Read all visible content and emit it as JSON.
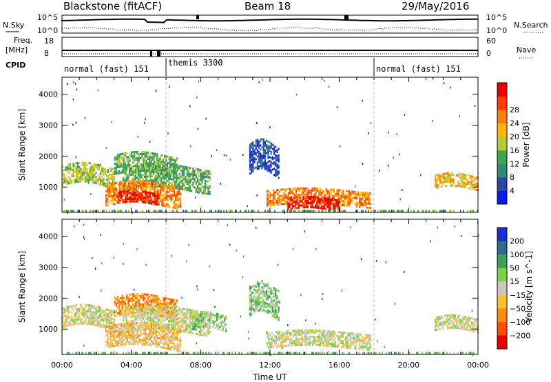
{
  "header": {
    "station": "Blackstone (fitACF)",
    "beam": "Beam 18",
    "date": "29/May/2016"
  },
  "top_panels": {
    "nsky_label": "N.Sky",
    "nsearch_label": "N.Search",
    "nsky_ticks": [
      "10^5",
      "10^0"
    ],
    "nsearch_ticks": [
      "10^5",
      "10^0"
    ],
    "freq_label_1": "Freq.",
    "freq_label_2": "[MHz]",
    "freq_ticks": [
      "18",
      "8"
    ],
    "nave_label": "Nave",
    "nave_ticks": [
      "60",
      "0"
    ],
    "cpid_label": "CPID",
    "cpid_segments": [
      {
        "label": "normal (fast) 151",
        "start_hour": 0,
        "end_hour": 6
      },
      {
        "label": "themis 3300",
        "start_hour": 6,
        "end_hour": 18
      },
      {
        "label": "normal (fast) 151",
        "start_hour": 18,
        "end_hour": 24
      }
    ]
  },
  "chart_data": [
    {
      "type": "heatmap",
      "name": "power",
      "ylabel": "Slant Range [km]",
      "xlabel": "Time UT",
      "xlim": [
        0,
        24
      ],
      "ylim": [
        180,
        4550
      ],
      "y_ticks": [
        1000,
        2000,
        3000,
        4000
      ],
      "x_tick_labels": [
        "00:00",
        "04:00",
        "08:00",
        "12:00",
        "16:00",
        "20:00",
        "00:00"
      ],
      "colorbar": {
        "label": "Power [dB]",
        "ticks": [
          "4",
          "8",
          "12",
          "16",
          "20",
          "24",
          "28"
        ],
        "colors": [
          "#0a1be8",
          "#2a47a8",
          "#33887a",
          "#3aa84a",
          "#b8c83a",
          "#ffb400",
          "#ff8000",
          "#ff4000",
          "#e80000"
        ]
      },
      "echo_regions": [
        {
          "t0": 0.0,
          "t1": 3.0,
          "r0": 1050,
          "r1": 1700,
          "level": 4
        },
        {
          "t0": 3.0,
          "t1": 6.6,
          "r0": 1400,
          "r1": 2050,
          "level": 3
        },
        {
          "t0": 3.5,
          "t1": 8.5,
          "r0": 900,
          "r1": 1650,
          "level": 3
        },
        {
          "t0": 2.5,
          "t1": 6.8,
          "r0": 400,
          "r1": 1100,
          "level": 6
        },
        {
          "t0": 3.2,
          "t1": 5.5,
          "r0": 500,
          "r1": 850,
          "level": 8
        },
        {
          "t0": 11.8,
          "t1": 17.8,
          "r0": 400,
          "r1": 900,
          "level": 6
        },
        {
          "t0": 13.0,
          "t1": 16.0,
          "r0": 300,
          "r1": 650,
          "level": 8
        },
        {
          "t0": 21.5,
          "t1": 24.0,
          "r0": 950,
          "r1": 1400,
          "level": 5
        },
        {
          "t0": 10.8,
          "t1": 12.5,
          "r0": 1400,
          "r1": 2400,
          "level": 1
        }
      ]
    },
    {
      "type": "heatmap",
      "name": "velocity",
      "ylabel": "Slant Range [km]",
      "xlabel": "Time UT",
      "xlim": [
        0,
        24
      ],
      "ylim": [
        180,
        4550
      ],
      "y_ticks": [
        1000,
        2000,
        3000,
        4000
      ],
      "x_tick_labels": [
        "00:00",
        "04:00",
        "08:00",
        "12:00",
        "16:00",
        "20:00",
        "00:00"
      ],
      "colorbar": {
        "label": "Velocity [m s^-1]",
        "ticks": [
          "200",
          "100",
          "50",
          "15",
          "−15",
          "−50",
          "−100",
          "−200"
        ],
        "colors": [
          "#1a2fd0",
          "#2f6b8a",
          "#3aa05a",
          "#7cd048",
          "#c8c8c0",
          "#ffc030",
          "#ff8c00",
          "#ff5000",
          "#e80000"
        ]
      },
      "echo_regions": [
        {
          "t0": 0.0,
          "t1": 3.0,
          "r0": 1050,
          "r1": 1700,
          "level": 4
        },
        {
          "t0": 3.0,
          "t1": 6.6,
          "r0": 1400,
          "r1": 2050,
          "level": 6
        },
        {
          "t0": 3.5,
          "t1": 8.5,
          "r0": 900,
          "r1": 1650,
          "level": 4
        },
        {
          "t0": 2.5,
          "t1": 6.8,
          "r0": 400,
          "r1": 1100,
          "level": 5
        },
        {
          "t0": 7.5,
          "t1": 9.5,
          "r0": 1000,
          "r1": 1500,
          "level": 3
        },
        {
          "t0": 11.8,
          "t1": 17.8,
          "r0": 400,
          "r1": 900,
          "level": 4
        },
        {
          "t0": 21.5,
          "t1": 24.0,
          "r0": 950,
          "r1": 1400,
          "level": 4
        },
        {
          "t0": 10.8,
          "t1": 12.5,
          "r0": 1400,
          "r1": 2400,
          "level": 3
        }
      ]
    }
  ]
}
